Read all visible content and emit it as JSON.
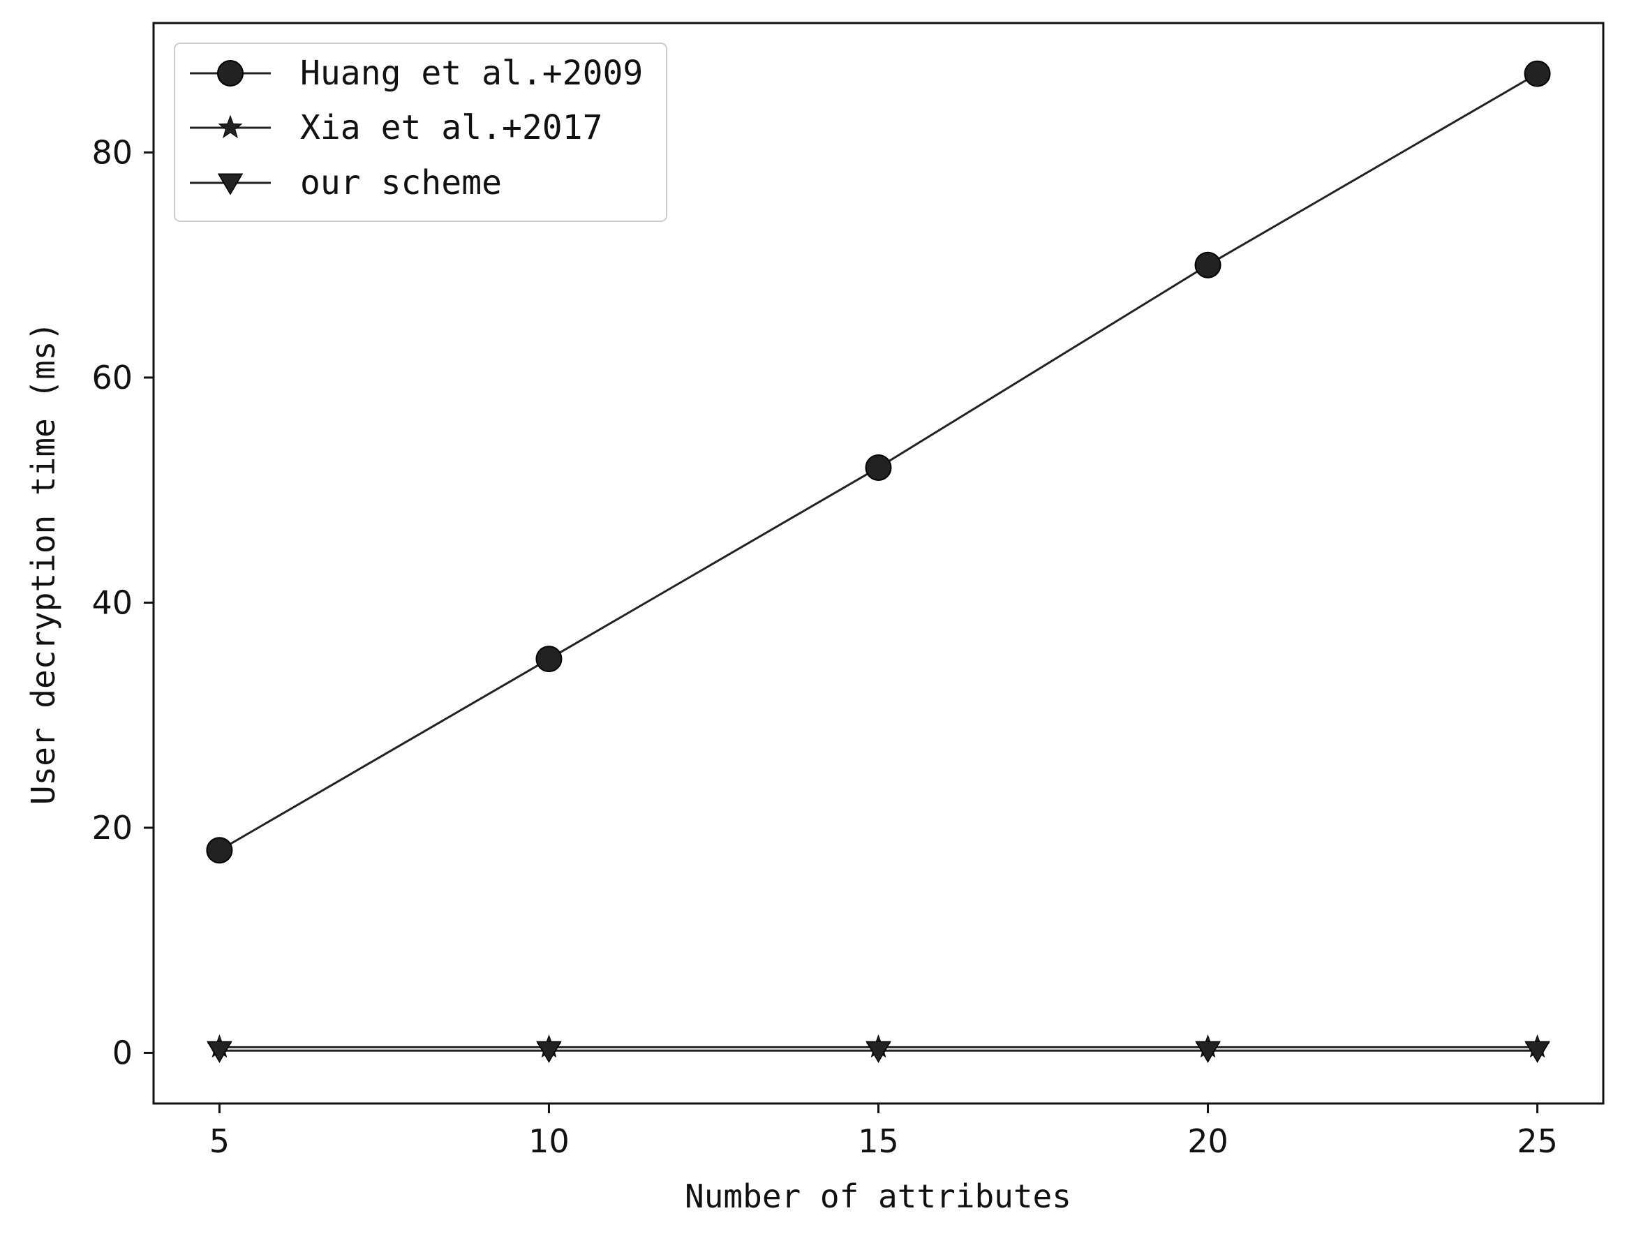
{
  "chart_data": {
    "type": "line",
    "title": "",
    "xlabel": "Number of attributes",
    "ylabel": "User decryption time (ms)",
    "x": [
      5,
      10,
      15,
      20,
      25
    ],
    "xticks": [
      5,
      10,
      15,
      20,
      25
    ],
    "yticks": [
      0,
      20,
      40,
      60,
      80
    ],
    "xlim": [
      4,
      26
    ],
    "ylim": [
      -4.5,
      91.5
    ],
    "grid": false,
    "legend_position": "top-left",
    "series": [
      {
        "name": "Huang et al.+2009",
        "marker": "circle",
        "color": "#222222",
        "values": [
          18,
          35,
          52,
          70,
          87
        ]
      },
      {
        "name": "Xia et al.+2017",
        "marker": "star",
        "color": "#222222",
        "values": [
          0.5,
          0.5,
          0.5,
          0.5,
          0.5
        ]
      },
      {
        "name": "our scheme",
        "marker": "triangle-down",
        "color": "#222222",
        "values": [
          0.2,
          0.2,
          0.2,
          0.2,
          0.2
        ]
      }
    ]
  }
}
